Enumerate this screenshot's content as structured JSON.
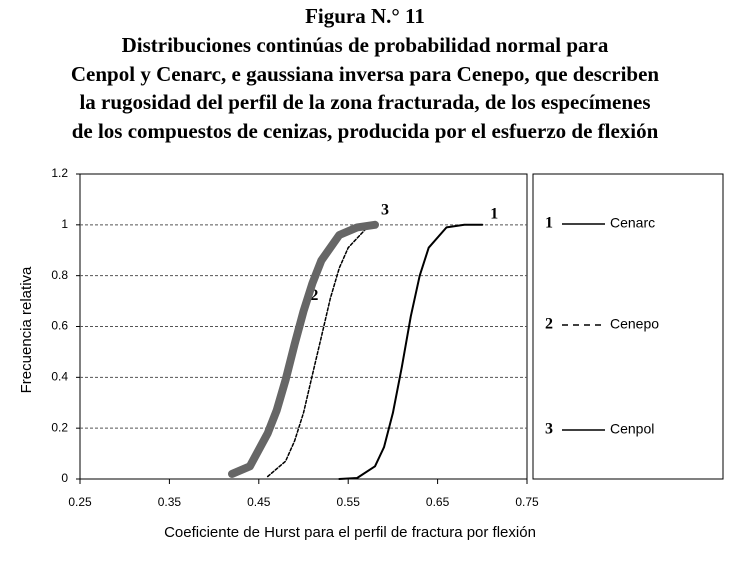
{
  "chart_data": {
    "type": "line",
    "title": "Figura N.° 11",
    "subtitle": [
      "Distribuciones continúas de probabilidad normal para",
      "Cenpol y Cenarc, e gaussiana inversa para Cenepo, que describen",
      "la rugosidad del perfil de la zona fracturada, de los especímenes",
      "de los compuestos de cenizas, producida por el esfuerzo de flexión"
    ],
    "x_label": "Coeficiente de Hurst para el perfil de fractura por flexión",
    "y_label": "Frecuencia relativa",
    "xlim": [
      0.25,
      0.75
    ],
    "xticks": [
      0.25,
      0.35,
      0.45,
      0.55,
      0.65,
      0.75
    ],
    "ylim": [
      0,
      1.2
    ],
    "yticks": [
      0,
      0.2,
      0.4,
      0.6,
      0.8,
      1,
      1.2
    ],
    "grid": true,
    "series": [
      {
        "name": "Cenarc",
        "marker_label": "1",
        "color": "#000000",
        "style": "solid",
        "width": 2,
        "x": [
          0.54,
          0.56,
          0.58,
          0.59,
          0.6,
          0.61,
          0.62,
          0.63,
          0.64,
          0.66,
          0.68,
          0.7
        ],
        "values": [
          0.0,
          0.004,
          0.05,
          0.125,
          0.26,
          0.44,
          0.64,
          0.8,
          0.91,
          0.99,
          1.0,
          1.0
        ]
      },
      {
        "name": "Cenepo",
        "marker_label": "2",
        "color": "#000000",
        "style": "dashed",
        "width": 1.5,
        "x": [
          0.46,
          0.48,
          0.49,
          0.5,
          0.51,
          0.52,
          0.53,
          0.54,
          0.55,
          0.57
        ],
        "values": [
          0.01,
          0.07,
          0.15,
          0.26,
          0.41,
          0.56,
          0.71,
          0.83,
          0.91,
          0.985
        ]
      },
      {
        "name": "Cenpol",
        "marker_label": "3",
        "color": "#666666",
        "style": "solid",
        "width": 8,
        "x": [
          0.42,
          0.44,
          0.46,
          0.47,
          0.48,
          0.49,
          0.5,
          0.51,
          0.52,
          0.54,
          0.56,
          0.58
        ],
        "values": [
          0.02,
          0.05,
          0.18,
          0.27,
          0.39,
          0.53,
          0.66,
          0.77,
          0.86,
          0.96,
          0.99,
          1.0
        ]
      }
    ]
  }
}
